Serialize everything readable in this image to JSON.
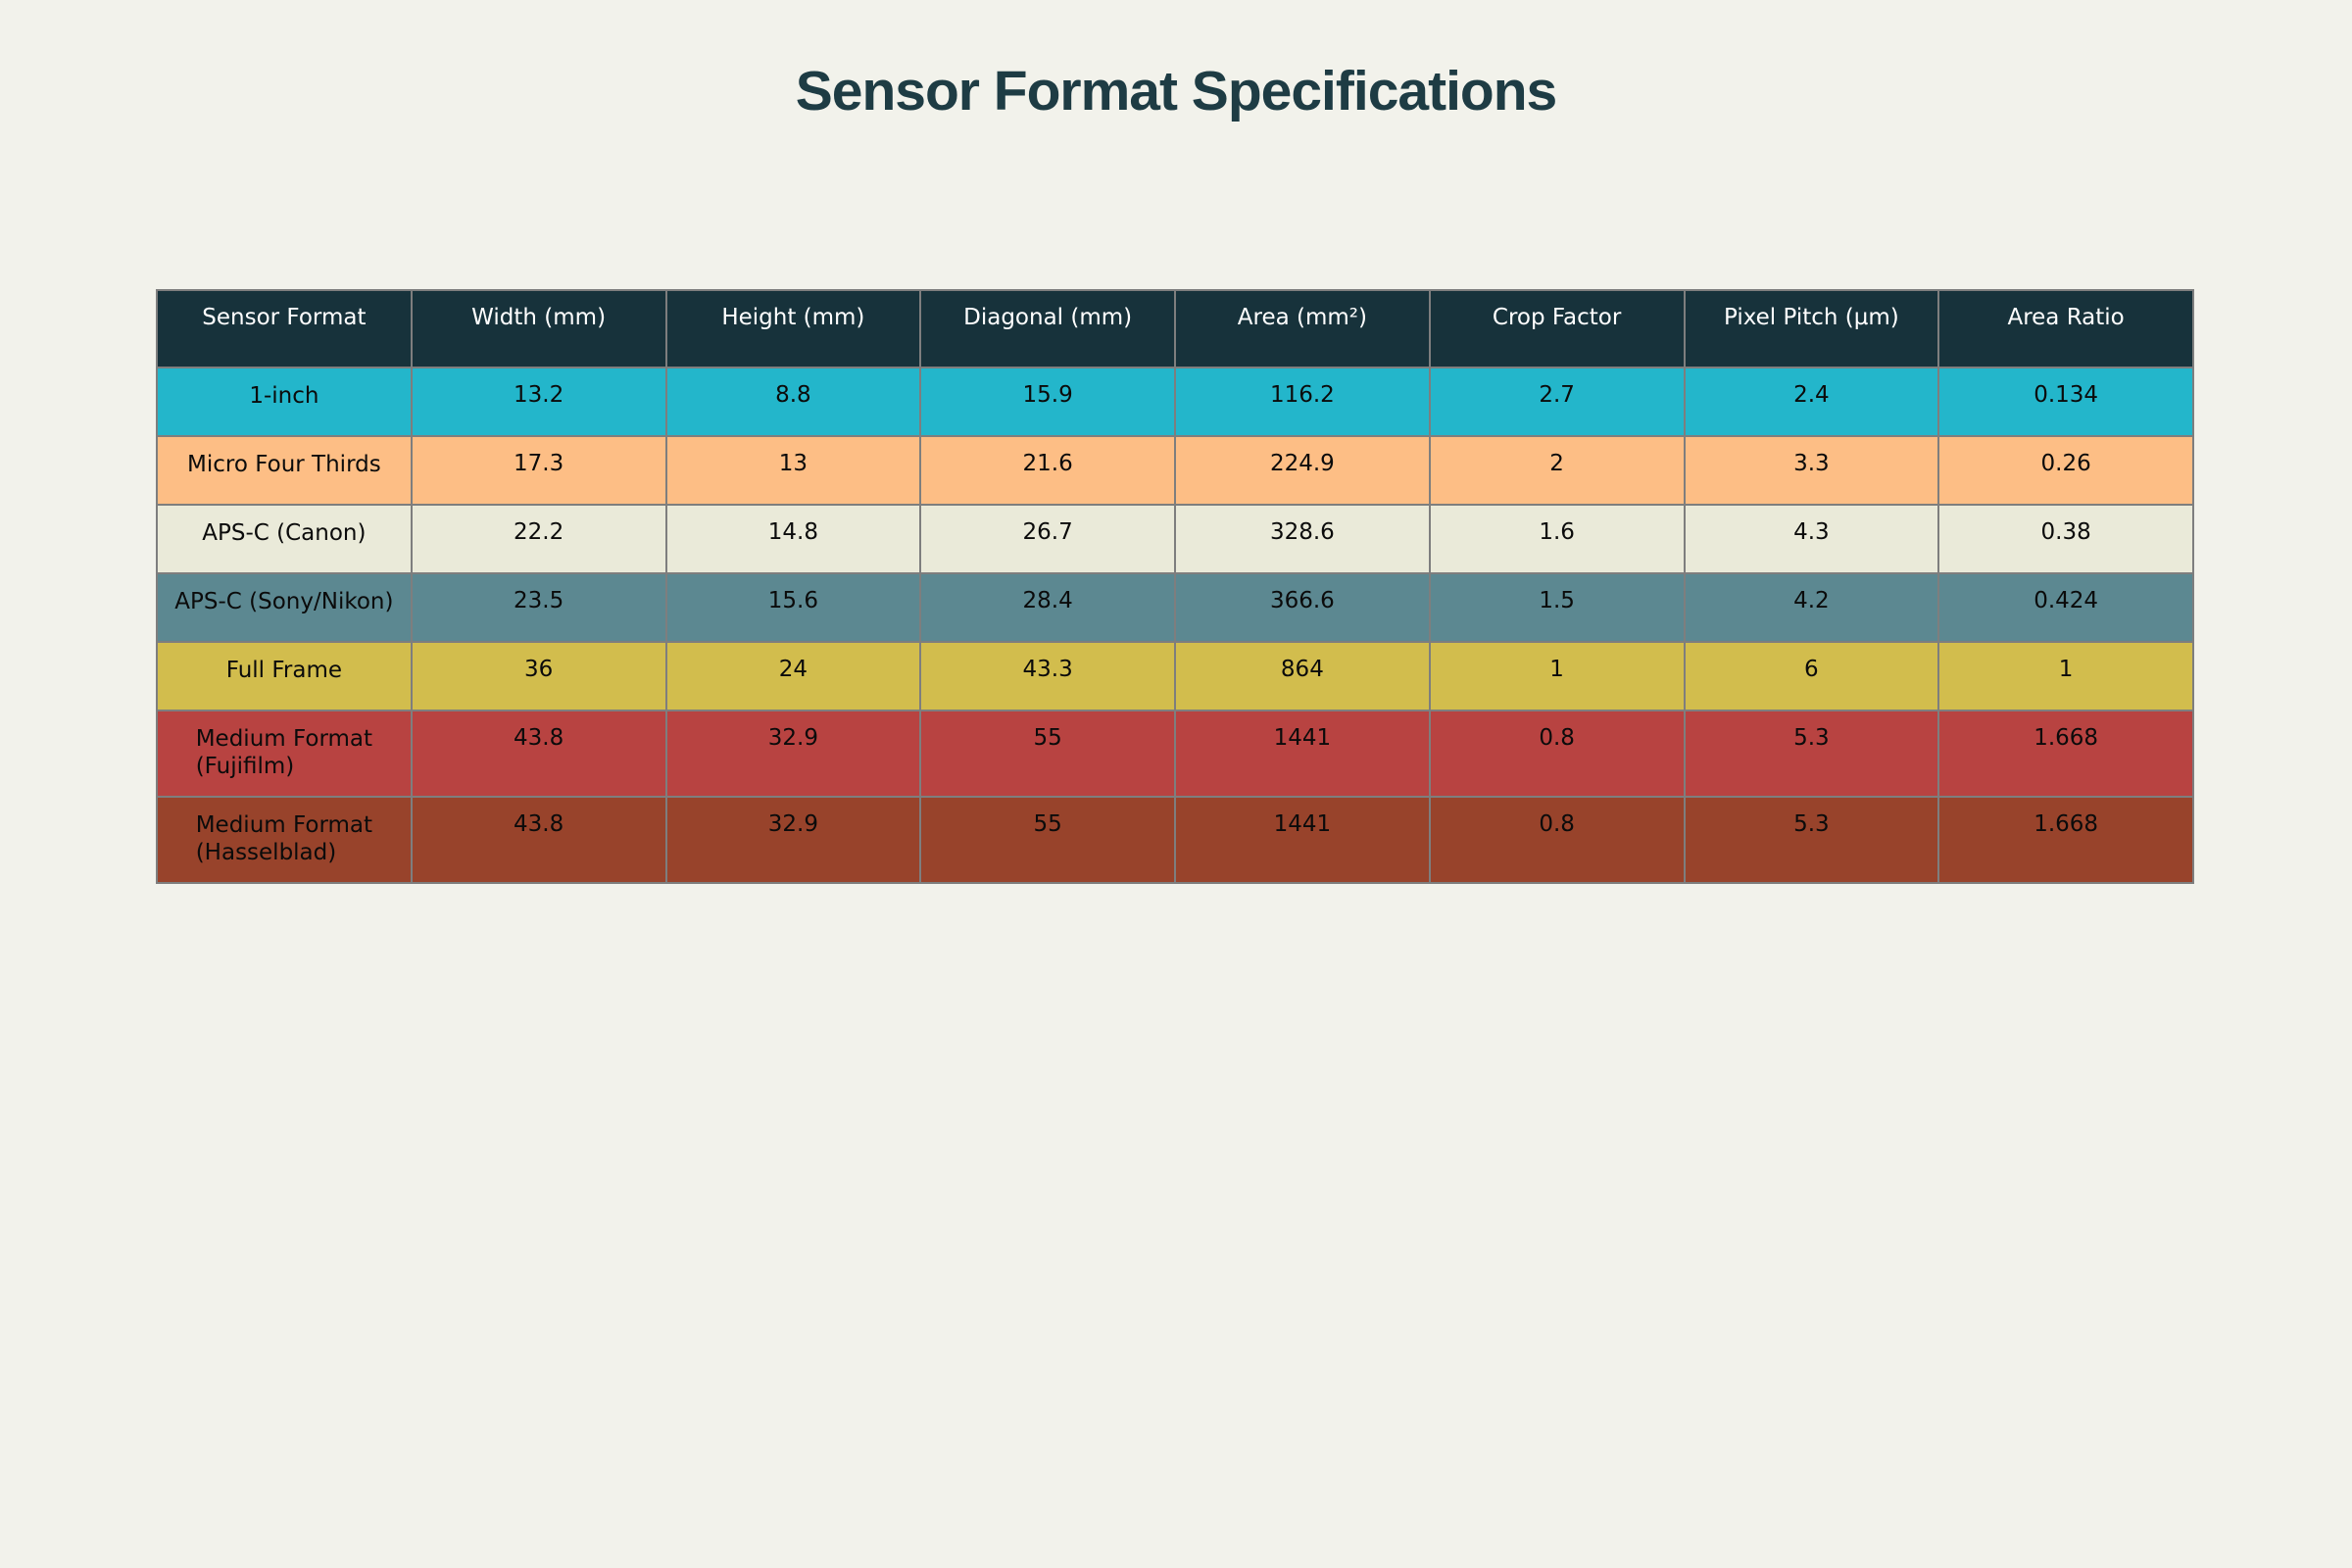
{
  "title": "Sensor Format Specifications",
  "colors": {
    "page_bg": "#F2F2EB",
    "title_text": "#1E3C44",
    "header_bg": "#17323B",
    "header_text": "#FFFFFF",
    "cell_border": "#7E7E7E",
    "body_text": "#0B0B0B"
  },
  "chart_data": {
    "type": "table",
    "title": "Sensor Format Specifications",
    "columns": [
      "Sensor Format",
      "Width (mm)",
      "Height (mm)",
      "Diagonal (mm)",
      "Area (mm²)",
      "Crop Factor",
      "Pixel Pitch (µm)",
      "Area Ratio"
    ],
    "rows": [
      {
        "label": "1-inch",
        "values": [
          13.2,
          8.8,
          15.9,
          116.2,
          2.7,
          2.4,
          0.134
        ],
        "row_color": "#23B6CB",
        "tall": false
      },
      {
        "label": "Micro Four Thirds",
        "values": [
          17.3,
          13,
          21.6,
          224.9,
          2,
          3.3,
          0.26
        ],
        "row_color": "#FDBE85",
        "tall": false
      },
      {
        "label": "APS-C (Canon)",
        "values": [
          22.2,
          14.8,
          26.7,
          328.6,
          1.6,
          4.3,
          0.38
        ],
        "row_color": "#EAEAD9",
        "tall": false
      },
      {
        "label": "APS-C (Sony/Nikon)",
        "values": [
          23.5,
          15.6,
          28.4,
          366.6,
          1.5,
          4.2,
          0.424
        ],
        "row_color": "#5C8891",
        "tall": false
      },
      {
        "label": "Full Frame",
        "values": [
          36,
          24,
          43.3,
          864,
          1,
          6,
          1
        ],
        "row_color": "#D2BD4D",
        "tall": false
      },
      {
        "label": "Medium Format\n(Fujifilm)",
        "values": [
          43.8,
          32.9,
          55,
          1441,
          0.8,
          5.3,
          1.668
        ],
        "row_color": "#B84341",
        "tall": true
      },
      {
        "label": "Medium Format\n(Hasselblad)",
        "values": [
          43.8,
          32.9,
          55,
          1441,
          0.8,
          5.3,
          1.668
        ],
        "row_color": "#98432B",
        "tall": true
      }
    ]
  }
}
